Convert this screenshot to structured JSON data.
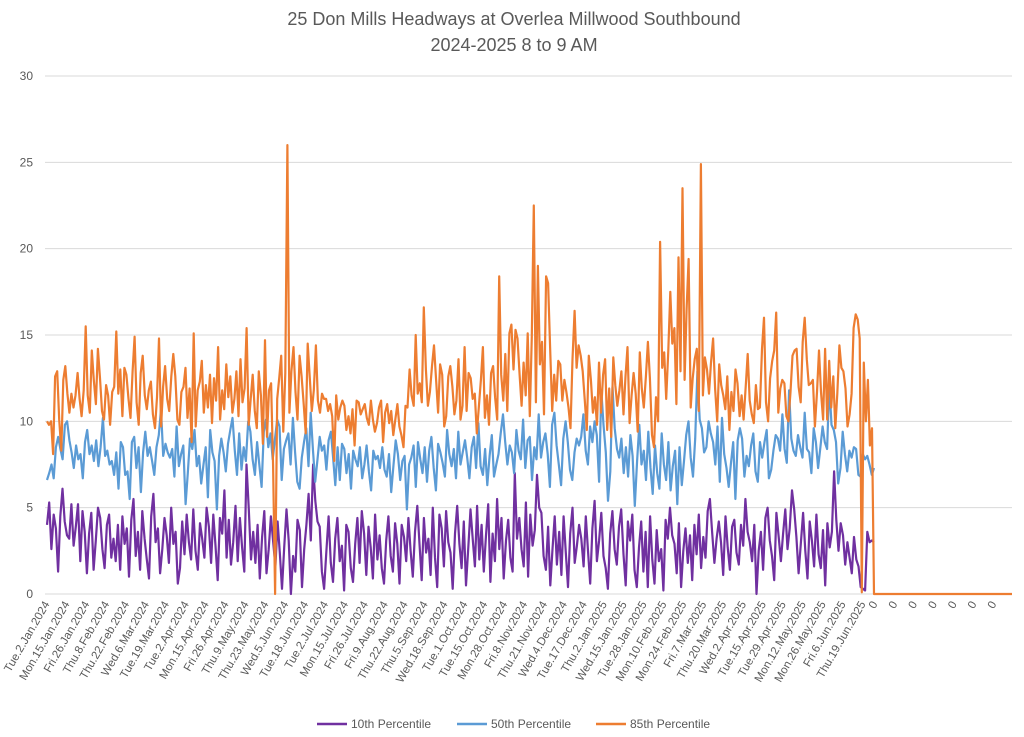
{
  "chart_data": {
    "type": "line",
    "title": "25 Don Mills Headways at Overlea Millwood Southbound",
    "subtitle": "2024-2025 8 to 9 AM",
    "xlabel": "",
    "ylabel": "",
    "ylim": [
      0,
      30
    ],
    "yticks": [
      "0",
      "5",
      "10",
      "15",
      "20",
      "25",
      "30"
    ],
    "grid": true,
    "legend": "bottom",
    "x_tick_labels": [
      "Tue.2.Jan.2024",
      "Mon.15.Jan.2024",
      "Fri.26.Jan.2024",
      "Thu.8.Feb.2024",
      "Thu.22.Feb.2024",
      "Wed.6.Mar.2024",
      "Tue.19.Mar.2024",
      "Tue.2.Apr.2024",
      "Mon.15.Apr.2024",
      "Fri.26.Apr.2024",
      "Thu.9.May.2024",
      "Thu.23.May.2024",
      "Wed.5.Jun.2024",
      "Tue.18.Jun.2024",
      "Tue.2.Jul.2024",
      "Mon.15.Jul.2024",
      "Fri.26.Jul.2024",
      "Fri.9.Aug.2024",
      "Thu.22.Aug.2024",
      "Thu.5.Sep.2024",
      "Wed.18.Sep.2024",
      "Tue.1.Oct.2024",
      "Tue.15.Oct.2024",
      "Mon.28.Oct.2024",
      "Fri.8.Nov.2024",
      "Thu.21.Nov.2024",
      "Wed.4.Dec.2024",
      "Tue.17.Dec.2024",
      "Thu.2.Jan.2025",
      "Wed.15.Jan.2025",
      "Tue.28.Jan.2025",
      "Mon.10.Feb.2025",
      "Mon.24.Feb.2025",
      "Fri.7.Mar.2025",
      "Thu.20.Mar.2025",
      "Wed.2.Apr.2025",
      "Tue.15.Apr.2025",
      "Tue.29.Apr.2025",
      "Mon.12.May.2025",
      "Mon.26.May.2025",
      "Fri.6.Jun.2025",
      "Thu.19.Jun.2025"
    ],
    "trailing_zero_labels": [
      "0",
      "0",
      "0",
      "0",
      "0",
      "0",
      "0"
    ],
    "series": [
      {
        "name": "10th Percentile",
        "color": "#7030A0",
        "values": [
          4.0,
          5.3,
          2.6,
          4.6,
          3.8,
          1.3,
          4.5,
          6.1,
          4.2,
          3.4,
          3.2,
          5.2,
          2.8,
          3.9,
          5.2,
          1.9,
          4.8,
          3.6,
          1.2,
          3.5,
          4.7,
          1.4,
          3.1,
          5.0,
          4.4,
          2.6,
          1.5,
          4.0,
          4.6,
          2.1,
          3.2,
          1.9,
          4.0,
          1.4,
          4.5,
          2.9,
          3.8,
          1.0,
          4.3,
          5.5,
          2.2,
          3.6,
          1.4,
          4.8,
          3.2,
          2.0,
          0.9,
          4.5,
          5.8,
          3.0,
          3.8,
          1.2,
          2.6,
          4.4,
          3.4,
          1.8,
          5.0,
          2.9,
          3.6,
          0.6,
          1.5,
          4.2,
          2.3,
          4.6,
          3.0,
          2.0,
          4.9,
          2.5,
          1.4,
          4.1,
          3.2,
          2.1,
          5.0,
          3.9,
          1.8,
          4.6,
          2.8,
          0.8,
          4.4,
          3.5,
          6.0,
          2.1,
          4.3,
          1.7,
          3.0,
          5.1,
          1.9,
          4.4,
          2.7,
          1.3,
          7.5,
          4.9,
          2.0,
          3.6,
          1.8,
          4.0,
          0.9,
          3.3,
          4.8,
          1.2,
          2.6,
          4.5,
          3.0,
          1.6,
          4.2,
          2.4,
          0.3,
          2.7,
          4.9,
          3.1,
          0.0,
          2.2,
          1.3,
          4.3,
          3.7,
          0.4,
          2.6,
          4.0,
          5.8,
          3.1,
          7.5,
          5.4,
          4.2,
          3.9,
          1.3,
          0.3,
          2.5,
          4.5,
          1.8,
          0.7,
          3.2,
          4.4,
          1.9,
          2.8,
          0.2,
          4.0,
          3.6,
          1.5,
          0.7,
          2.9,
          4.4,
          1.8,
          4.8,
          3.5,
          1.1,
          3.9,
          2.7,
          0.9,
          4.6,
          2.0,
          3.4,
          1.5,
          0.6,
          3.1,
          4.5,
          2.2,
          1.3,
          4.1,
          2.9,
          0.6,
          4.0,
          3.3,
          1.9,
          4.4,
          2.5,
          1.0,
          3.6,
          5.1,
          2.9,
          0.8,
          4.4,
          2.4,
          3.2,
          1.1,
          5.0,
          2.1,
          0.4,
          4.6,
          3.8,
          1.6,
          4.8,
          3.0,
          2.4,
          0.3,
          3.5,
          5.1,
          2.9,
          1.5,
          4.2,
          0.5,
          2.7,
          4.9,
          3.2,
          1.6,
          5.1,
          2.0,
          4.0,
          1.3,
          3.4,
          5.2,
          0.7,
          3.5,
          1.9,
          5.5,
          2.6,
          4.4,
          0.9,
          3.1,
          4.3,
          2.1,
          1.3,
          7.0,
          3.2,
          4.4,
          2.6,
          1.6,
          5.3,
          1.0,
          4.6,
          2.8,
          3.7,
          6.9,
          5.0,
          4.7,
          2.2,
          1.4,
          3.9,
          0.5,
          2.6,
          4.5,
          1.7,
          3.6,
          1.1,
          4.5,
          2.4,
          0.4,
          3.5,
          5.0,
          1.8,
          2.8,
          4.0,
          3.2,
          1.6,
          4.5,
          2.5,
          0.6,
          3.8,
          5.4,
          1.9,
          3.1,
          4.7,
          2.2,
          1.5,
          0.3,
          3.5,
          4.8,
          2.6,
          1.7,
          3.9,
          4.9,
          2.3,
          0.5,
          4.2,
          3.1,
          4.6,
          1.4,
          0.4,
          2.7,
          4.2,
          1.3,
          3.6,
          0.4,
          4.5,
          2.0,
          0.6,
          3.7,
          1.9,
          2.6,
          0.2,
          4.3,
          3.2,
          5.0,
          3.4,
          2.9,
          1.2,
          4.1,
          0.4,
          2.5,
          3.8,
          1.8,
          3.4,
          0.8,
          4.0,
          2.3,
          4.6,
          1.5,
          3.3,
          2.1,
          4.8,
          5.5,
          3.6,
          1.8,
          3.2,
          4.2,
          3.0,
          1.1,
          4.5,
          2.7,
          1.4,
          3.9,
          4.3,
          2.4,
          1.7,
          4.0,
          2.8,
          5.5,
          3.6,
          3.0,
          1.9,
          4.0,
          0.0,
          2.5,
          3.6,
          1.4,
          4.4,
          5.0,
          3.1,
          2.2,
          0.8,
          4.7,
          3.3,
          1.9,
          3.5,
          4.9,
          2.6,
          3.8,
          6.0,
          4.9,
          3.3,
          1.2,
          2.9,
          4.7,
          2.5,
          0.9,
          4.2,
          3.1,
          1.6,
          4.6,
          2.3,
          1.5,
          3.7,
          0.5,
          4.1,
          2.7,
          3.6,
          7.1,
          4.3,
          2.5,
          4.1,
          3.4,
          1.7,
          3.0,
          2.1,
          1.2,
          3.3,
          2.0,
          1.6,
          0.4,
          0.3,
          0.2,
          3.6,
          3.0,
          3.1,
          3.0
        ]
      },
      {
        "name": "50th Percentile",
        "color": "#5B9BD5",
        "values": [
          6.6,
          7.0,
          7.5,
          6.7,
          8.5,
          9.1,
          8.4,
          7.8,
          9.8,
          10.0,
          8.9,
          8.2,
          7.3,
          8.6,
          7.8,
          8.1,
          6.7,
          8.8,
          9.5,
          8.1,
          8.6,
          7.7,
          8.9,
          7.4,
          8.5,
          10.2,
          8.0,
          8.3,
          7.5,
          7.7,
          6.9,
          8.2,
          6.1,
          8.8,
          8.5,
          6.9,
          7.1,
          5.5,
          8.8,
          9.1,
          7.3,
          8.5,
          5.9,
          8.2,
          9.4,
          8.0,
          8.5,
          7.7,
          6.9,
          8.5,
          9.2,
          10.7,
          8.0,
          8.7,
          8.2,
          7.9,
          8.4,
          6.8,
          9.7,
          7.4,
          8.1,
          8.6,
          5.2,
          7.0,
          9.0,
          8.4,
          9.5,
          7.4,
          8.0,
          6.4,
          7.5,
          8.5,
          5.6,
          9.5,
          8.2,
          7.7,
          4.9,
          8.0,
          9.0,
          8.2,
          7.1,
          8.7,
          9.5,
          10.2,
          8.3,
          6.9,
          9.3,
          7.2,
          8.5,
          7.7,
          10.0,
          9.4,
          7.8,
          6.9,
          8.8,
          7.5,
          6.2,
          9.4,
          10.1,
          8.5,
          9.3,
          7.8,
          9.0,
          10.1,
          9.7,
          6.6,
          8.4,
          8.9,
          9.3,
          7.5,
          10.2,
          8.2,
          6.5,
          6.1,
          7.9,
          8.8,
          9.6,
          7.4,
          10.5,
          8.3,
          6.5,
          7.8,
          9.1,
          8.3,
          8.6,
          7.2,
          8.9,
          9.4,
          7.9,
          6.3,
          8.5,
          6.6,
          8.7,
          8.4,
          7.0,
          8.1,
          6.1,
          8.3,
          7.8,
          7.4,
          8.5,
          6.7,
          7.5,
          8.6,
          7.1,
          6.0,
          8.3,
          7.8,
          8.0,
          7.3,
          8.5,
          7.2,
          6.8,
          8.1,
          5.9,
          7.4,
          8.9,
          8.1,
          6.6,
          7.7,
          8.0,
          4.9,
          7.5,
          7.9,
          8.6,
          6.2,
          8.8,
          7.8,
          7.0,
          8.5,
          6.5,
          8.3,
          9.1,
          7.3,
          6.0,
          8.7,
          8.2,
          7.6,
          6.8,
          9.5,
          8.1,
          7.4,
          8.4,
          6.7,
          9.4,
          7.5,
          8.2,
          8.9,
          7.9,
          6.7,
          8.5,
          9.1,
          7.3,
          9.9,
          7.4,
          6.9,
          8.4,
          6.3,
          8.0,
          9.2,
          6.8,
          7.5,
          8.1,
          9.3,
          10.4,
          8.8,
          7.5,
          8.6,
          8.2,
          7.0,
          9.5,
          8.3,
          7.8,
          10.1,
          7.3,
          8.9,
          9.1,
          6.6,
          8.5,
          7.8,
          10.4,
          7.9,
          8.8,
          9.3,
          8.1,
          6.2,
          9.8,
          10.5,
          8.6,
          7.5,
          6.3,
          9.0,
          10.0,
          8.8,
          7.2,
          6.6,
          8.2,
          9.0,
          8.6,
          9.1,
          10.4,
          8.3,
          7.5,
          9.7,
          8.8,
          10.0,
          9.2,
          6.5,
          11.8,
          9.8,
          8.2,
          5.4,
          7.1,
          12.0,
          9.6,
          8.4,
          7.9,
          9.0,
          7.0,
          8.5,
          6.8,
          9.2,
          8.0,
          5.1,
          7.7,
          9.8,
          7.5,
          8.3,
          6.6,
          9.4,
          7.3,
          5.8,
          8.6,
          7.0,
          6.1,
          9.3,
          7.5,
          6.6,
          8.8,
          6.0,
          7.4,
          8.3,
          5.2,
          8.5,
          6.3,
          7.7,
          9.2,
          10.0,
          7.9,
          6.8,
          9.0,
          12.9,
          10.1,
          9.6,
          8.2,
          8.5,
          10.0,
          9.3,
          8.8,
          7.5,
          9.7,
          6.5,
          10.2,
          8.1,
          7.3,
          6.2,
          7.6,
          8.8,
          5.5,
          8.9,
          9.6,
          9.0,
          6.8,
          8.0,
          7.4,
          8.6,
          9.3,
          7.1,
          6.5,
          8.8,
          7.9,
          8.8,
          9.5,
          6.7,
          7.2,
          8.3,
          9.2,
          9.0,
          8.3,
          10.4,
          8.4,
          7.6,
          11.8,
          9.0,
          8.3,
          8.0,
          9.2,
          8.5,
          7.9,
          10.5,
          8.4,
          8.2,
          7.0,
          9.6,
          8.8,
          7.3,
          8.5,
          9.7,
          8.8,
          8.4,
          12.2,
          9.8,
          9.5,
          8.8,
          6.4,
          7.3,
          9.4,
          8.1,
          7.1,
          8.3,
          7.9,
          8.5,
          8.4,
          6.9,
          6.8,
          8.1,
          7.8,
          8.0,
          7.5,
          6.9,
          7.3
        ]
      },
      {
        "name": "85th Percentile",
        "color": "#ED7D31",
        "values": [
          10.0,
          9.8,
          10.0,
          8.1,
          12.6,
          12.9,
          10.1,
          8.3,
          12.4,
          13.2,
          11.6,
          10.5,
          11.6,
          10.8,
          11.5,
          12.8,
          11.3,
          10.3,
          11.8,
          15.5,
          11.5,
          10.5,
          14.1,
          12.4,
          11.0,
          14.2,
          12.5,
          10.6,
          10.1,
          12.1,
          11.5,
          9.8,
          11.7,
          12.0,
          15.2,
          11.6,
          13.0,
          10.3,
          13.1,
          12.7,
          11.3,
          10.2,
          12.9,
          14.9,
          11.1,
          9.8,
          12.8,
          13.8,
          11.5,
          10.7,
          11.8,
          12.3,
          10.4,
          9.6,
          11.4,
          14.8,
          9.7,
          12.0,
          13.2,
          11.3,
          10.6,
          12.6,
          13.9,
          12.6,
          10.1,
          9.8,
          11.7,
          12.0,
          13.1,
          10.2,
          11.9,
          8.8,
          15.1,
          9.7,
          11.8,
          12.3,
          13.5,
          10.5,
          12.1,
          10.8,
          12.7,
          9.9,
          12.5,
          11.2,
          14.3,
          10.1,
          11.8,
          10.7,
          13.3,
          11.4,
          12.6,
          10.5,
          11.3,
          12.9,
          10.3,
          13.6,
          11.1,
          11.9,
          15.4,
          9.8,
          11.3,
          12.7,
          10.6,
          9.6,
          12.9,
          11.5,
          8.7,
          14.7,
          9.1,
          11.8,
          12.2,
          7.4,
          0.0,
          11.3,
          12.5,
          13.8,
          9.4,
          12.8,
          26.0,
          10.5,
          12.9,
          14.3,
          11.7,
          10.1,
          13.8,
          12.6,
          11.0,
          9.3,
          14.5,
          12.5,
          10.6,
          11.8,
          14.4,
          11.2,
          10.5,
          11.6,
          11.3,
          11.3,
          10.6,
          11.0,
          10.3,
          7.7,
          11.5,
          10.1,
          10.8,
          11.2,
          10.9,
          9.5,
          10.3,
          9.3,
          10.7,
          8.6,
          11.2,
          11.1,
          10.4,
          10.7,
          11.0,
          10.2,
          9.8,
          11.2,
          10.1,
          9.4,
          9.9,
          10.8,
          11.2,
          8.8,
          10.5,
          11.0,
          9.9,
          10.6,
          9.2,
          10.1,
          11.0,
          9.7,
          9.2,
          8.5,
          10.9,
          10.8,
          13.0,
          11.5,
          10.9,
          15.0,
          11.6,
          12.2,
          11.1,
          16.6,
          13.0,
          10.9,
          11.7,
          13.2,
          14.4,
          12.4,
          10.5,
          13.3,
          12.7,
          9.7,
          10.3,
          12.6,
          13.2,
          12.0,
          10.4,
          11.2,
          13.6,
          10.1,
          10.9,
          14.3,
          10.6,
          12.8,
          12.5,
          11.3,
          11.6,
          9.3,
          10.8,
          12.4,
          14.3,
          10.2,
          11.5,
          9.8,
          12.8,
          13.2,
          11.4,
          10.1,
          18.4,
          12.7,
          11.2,
          13.9,
          10.6,
          15.1,
          15.6,
          13.0,
          15.3,
          14.8,
          12.7,
          10.9,
          13.4,
          11.5,
          15.1,
          10.3,
          14.9,
          22.5,
          11.1,
          19.0,
          13.3,
          14.6,
          10.4,
          18.4,
          18.0,
          14.3,
          10.6,
          12.7,
          11.2,
          13.5,
          13.3,
          11.2,
          12.4,
          11.7,
          10.8,
          9.6,
          13.6,
          16.4,
          13.1,
          14.4,
          13.8,
          12.9,
          11.2,
          9.5,
          13.8,
          12.4,
          10.5,
          11.4,
          9.8,
          13.4,
          10.5,
          12.7,
          13.6,
          9.5,
          11.9,
          9.1,
          13.7,
          12.1,
          10.9,
          11.8,
          12.9,
          10.4,
          12.6,
          14.3,
          9.9,
          11.5,
          12.8,
          11.6,
          9.4,
          14.0,
          11.9,
          10.8,
          12.6,
          14.6,
          12.5,
          9.2,
          8.5,
          11.4,
          10.0,
          20.4,
          13.1,
          14.0,
          11.3,
          14.1,
          17.5,
          14.5,
          15.4,
          11.0,
          19.5,
          12.9,
          23.5,
          12.4,
          16.5,
          19.4,
          10.8,
          12.5,
          13.6,
          14.2,
          10.6,
          24.9,
          11.5,
          13.7,
          13.0,
          11.6,
          13.4,
          14.8,
          11.9,
          10.0,
          13.3,
          12.1,
          11.5,
          10.7,
          12.6,
          9.5,
          11.7,
          10.6,
          13.0,
          12.2,
          10.3,
          11.5,
          10.1,
          12.0,
          13.9,
          11.2,
          10.4,
          9.9,
          12.1,
          10.7,
          10.8,
          14.2,
          16.0,
          11.1,
          10.0,
          12.5,
          13.5,
          14.1,
          16.3,
          10.5,
          11.9,
          12.4,
          12.2,
          10.3,
          10.0,
          11.7,
          13.8,
          14.1,
          14.2,
          12.0,
          11.1,
          14.6,
          16.0,
          13.6,
          12.1,
          12.2,
          12.4,
          9.7,
          11.7,
          14.1,
          11.7,
          10.1,
          14.2,
          10.1,
          13.5,
          10.8,
          12.6,
          9.6,
          11.6,
          14.4,
          13.1,
          12.9,
          11.9,
          9.7,
          10.4,
          11.6,
          15.4,
          16.2,
          15.9,
          14.8,
          0.1,
          13.4,
          10.0,
          12.4,
          8.6,
          9.6,
          0.0
        ]
      }
    ]
  }
}
